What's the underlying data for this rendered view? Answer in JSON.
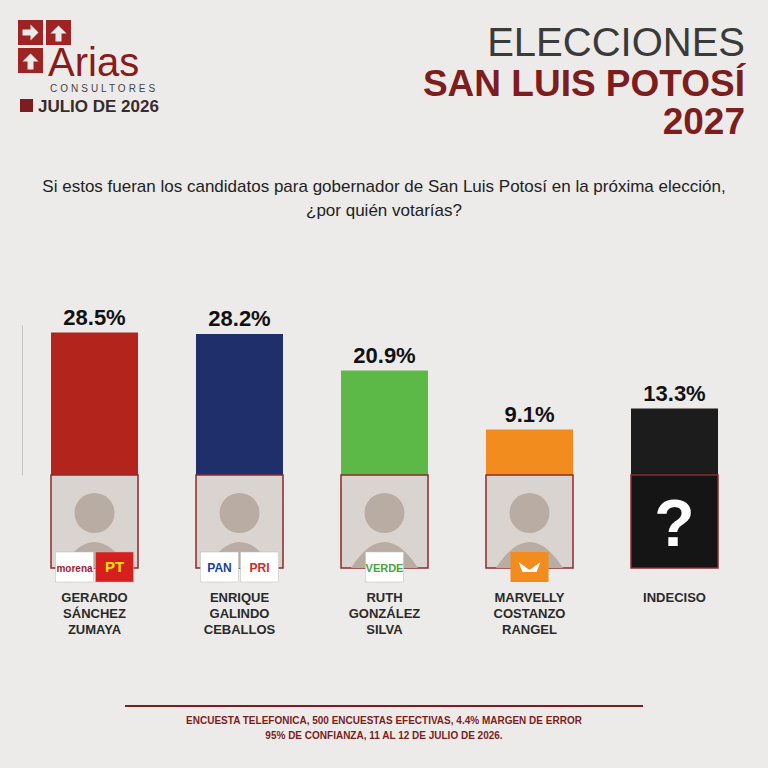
{
  "chart_data": {
    "type": "bar",
    "title": "ELECCIONES",
    "subtitle": "SAN LUIS POTOSÍ 2027",
    "source": "Arias",
    "source_subtitle": "CONSULTORES",
    "date": "JULIO DE 2026",
    "question": "Si estos fueran los candidatos para gobernador de San Luis Potosí en la próxima elección, ¿por quién votarías?",
    "categories": [
      "GERARDO SÁNCHEZ ZUMAYA",
      "ENRIQUE GALINDO CEBALLOS",
      "RUTH GONZÁLEZ SILVA",
      "MARVELLY COSTANZO RANGEL",
      "INDECISO"
    ],
    "values": [
      28.5,
      28.2,
      20.9,
      9.1,
      13.3
    ],
    "value_labels": [
      "28.5%",
      "28.2%",
      "20.9%",
      "9.1%",
      "13.3%"
    ],
    "colors": [
      "#b3241c",
      "#1f2f6b",
      "#5cb947",
      "#f28c1e",
      "#1c1c1c"
    ],
    "parties": [
      [
        "morena",
        "PT"
      ],
      [
        "PAN",
        "PRI"
      ],
      [
        "VERDE"
      ],
      [],
      []
    ],
    "placeholder": "?",
    "ylim": [
      0,
      30
    ],
    "yticks": [],
    "tick_labels": false,
    "data_labels": true,
    "grid": false,
    "note": [
      "ENCUESTA TELEFONICA, 500 ENCUESTAS EFECTIVAS, 4.4%  MARGEN DE ERROR",
      "95% DE CONFIANZA, 11 AL 12 DE JULIO DE 2026."
    ]
  }
}
